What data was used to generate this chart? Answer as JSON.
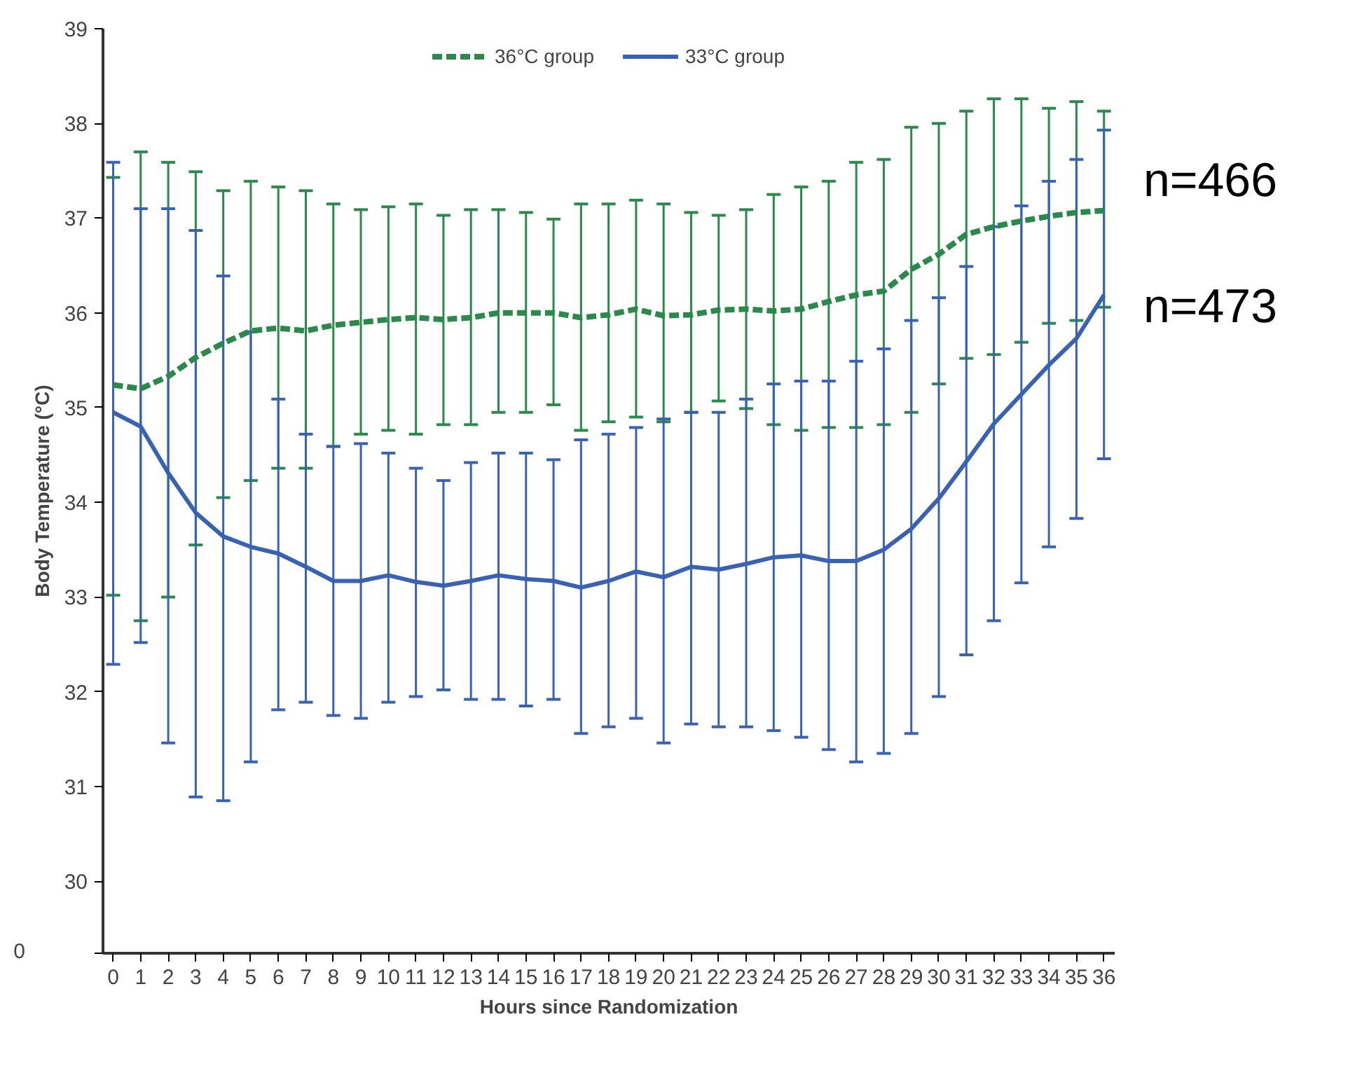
{
  "chart_data": {
    "type": "line",
    "xlabel": "Hours since Randomization",
    "ylabel": "Body Temperature (°C)",
    "x": [
      0,
      1,
      2,
      3,
      4,
      5,
      6,
      7,
      8,
      9,
      10,
      11,
      12,
      13,
      14,
      15,
      16,
      17,
      18,
      19,
      20,
      21,
      22,
      23,
      24,
      25,
      26,
      27,
      28,
      29,
      30,
      31,
      32,
      33,
      34,
      35,
      36
    ],
    "xlim": [
      -0.37,
      36.39
    ],
    "xticks": [
      0,
      1,
      2,
      3,
      4,
      5,
      6,
      7,
      8,
      9,
      10,
      11,
      12,
      13,
      14,
      15,
      16,
      17,
      18,
      19,
      20,
      21,
      22,
      23,
      24,
      25,
      26,
      27,
      28,
      29,
      30,
      31,
      32,
      33,
      34,
      35,
      36
    ],
    "ylim": [
      29.24,
      39
    ],
    "yticks": [
      {
        "value": 29.24,
        "label": null
      },
      30,
      31,
      32,
      33,
      34,
      35,
      36,
      37,
      38,
      39
    ],
    "legend": "top",
    "grid": false,
    "series": [
      {
        "name": "36°C group",
        "color": "#2b8a4b",
        "line_style": "dashed",
        "values": [
          35.24,
          35.2,
          35.33,
          35.53,
          35.68,
          35.81,
          35.84,
          35.81,
          35.87,
          35.9,
          35.93,
          35.95,
          35.93,
          35.95,
          36.0,
          36.0,
          36.0,
          35.95,
          35.98,
          36.04,
          35.97,
          35.98,
          36.03,
          36.04,
          36.02,
          36.04,
          36.12,
          36.19,
          36.23,
          36.46,
          36.62,
          36.83,
          36.91,
          36.97,
          37.02,
          37.06,
          37.08
        ],
        "errors": [
          [
            33.02,
            37.43
          ],
          [
            32.75,
            37.7
          ],
          [
            33.0,
            37.59
          ],
          [
            33.55,
            37.49
          ],
          [
            34.05,
            37.29
          ],
          [
            34.23,
            37.39
          ],
          [
            34.36,
            37.33
          ],
          [
            34.36,
            37.29
          ],
          [
            34.59,
            37.15
          ],
          [
            34.72,
            37.09
          ],
          [
            34.76,
            37.12
          ],
          [
            34.72,
            37.15
          ],
          [
            34.82,
            37.03
          ],
          [
            34.82,
            37.09
          ],
          [
            34.95,
            37.09
          ],
          [
            34.95,
            37.06
          ],
          [
            35.03,
            36.99
          ],
          [
            34.76,
            37.15
          ],
          [
            34.85,
            37.15
          ],
          [
            34.9,
            37.19
          ],
          [
            34.85,
            37.15
          ],
          [
            34.95,
            37.06
          ],
          [
            35.07,
            37.03
          ],
          [
            34.99,
            37.09
          ],
          [
            34.82,
            37.25
          ],
          [
            34.76,
            37.33
          ],
          [
            34.79,
            37.39
          ],
          [
            34.79,
            37.59
          ],
          [
            34.82,
            37.62
          ],
          [
            34.95,
            37.96
          ],
          [
            35.25,
            38.0
          ],
          [
            35.52,
            38.13
          ],
          [
            35.56,
            38.26
          ],
          [
            35.69,
            38.26
          ],
          [
            35.89,
            38.16
          ],
          [
            35.92,
            38.23
          ],
          [
            36.06,
            38.13
          ]
        ]
      },
      {
        "name": "33°C group",
        "color": "#3a62b3",
        "line_style": "solid",
        "values": [
          34.95,
          34.8,
          34.31,
          33.89,
          33.64,
          33.53,
          33.46,
          33.32,
          33.17,
          33.17,
          33.23,
          33.16,
          33.12,
          33.17,
          33.23,
          33.19,
          33.17,
          33.1,
          33.17,
          33.27,
          33.21,
          33.32,
          33.29,
          33.35,
          33.42,
          33.44,
          33.38,
          33.38,
          33.5,
          33.72,
          34.04,
          34.43,
          34.83,
          35.14,
          35.45,
          35.73,
          36.19
        ],
        "errors": [
          [
            32.29,
            37.59
          ],
          [
            32.52,
            37.1
          ],
          [
            31.46,
            37.1
          ],
          [
            30.89,
            36.87
          ],
          [
            30.85,
            36.39
          ],
          [
            31.26,
            35.8
          ],
          [
            31.81,
            35.09
          ],
          [
            31.89,
            34.72
          ],
          [
            31.75,
            34.59
          ],
          [
            31.72,
            34.62
          ],
          [
            31.89,
            34.52
          ],
          [
            31.95,
            34.36
          ],
          [
            32.02,
            34.23
          ],
          [
            31.92,
            34.42
          ],
          [
            31.92,
            34.52
          ],
          [
            31.85,
            34.52
          ],
          [
            31.92,
            34.45
          ],
          [
            31.56,
            34.66
          ],
          [
            31.63,
            34.72
          ],
          [
            31.72,
            34.79
          ],
          [
            31.46,
            34.88
          ],
          [
            31.66,
            34.95
          ],
          [
            31.63,
            34.95
          ],
          [
            31.63,
            35.09
          ],
          [
            31.59,
            35.25
          ],
          [
            31.52,
            35.28
          ],
          [
            31.39,
            35.28
          ],
          [
            31.26,
            35.49
          ],
          [
            31.35,
            35.62
          ],
          [
            31.56,
            35.92
          ],
          [
            31.95,
            36.16
          ],
          [
            32.39,
            36.49
          ],
          [
            32.75,
            36.91
          ],
          [
            33.15,
            37.13
          ],
          [
            33.53,
            37.39
          ],
          [
            33.83,
            37.62
          ],
          [
            34.46,
            37.93
          ]
        ]
      }
    ],
    "annotations": [
      "n=466",
      "n=473",
      "0"
    ]
  }
}
